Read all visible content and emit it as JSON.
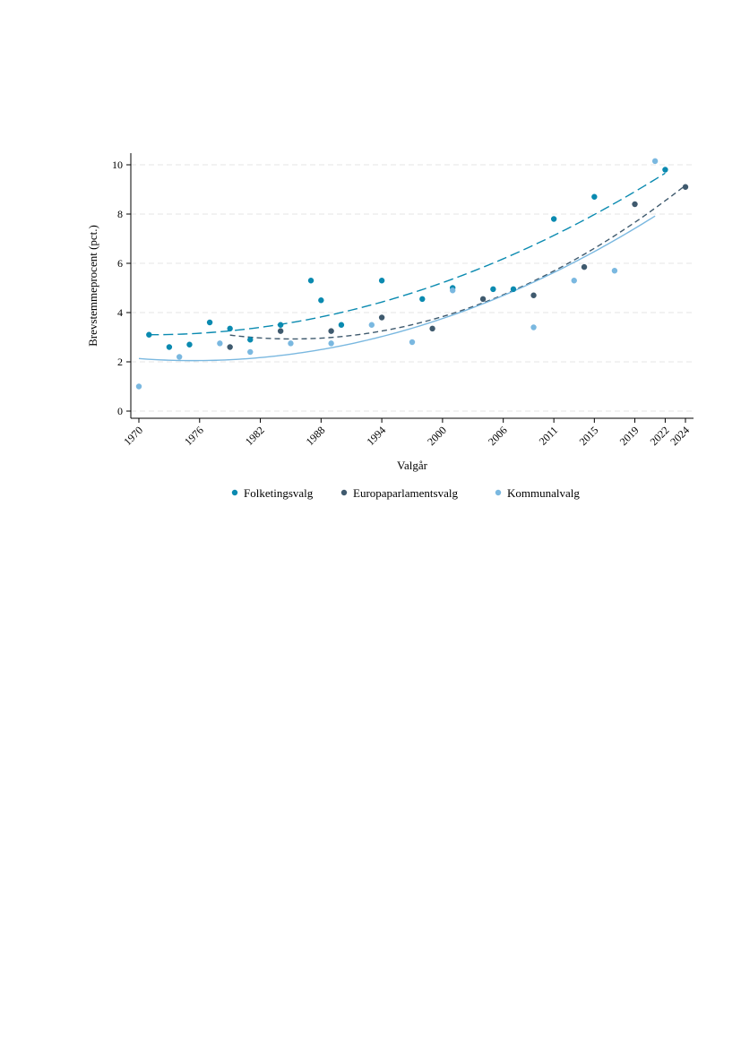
{
  "chart_data": {
    "type": "scatter",
    "title": "",
    "xlabel": "Valgår",
    "ylabel": "Brevstemmeprocent (pct.)",
    "xlim": [
      1970,
      2024
    ],
    "ylim": [
      0,
      10.5
    ],
    "grid": true,
    "legend_position": "bottom",
    "x_tick_labels": [
      "1970",
      "1976",
      "1982",
      "1988",
      "1994",
      "2000",
      "2006",
      "2011",
      "2015",
      "2019",
      "2022",
      "2024"
    ],
    "y_tick_labels": [
      "0",
      "2",
      "4",
      "6",
      "8",
      "10"
    ],
    "series": [
      {
        "name": "Folketingsvalg",
        "color": "#0a8ab0",
        "fit_style": "long-dash",
        "points": [
          [
            1971,
            3.1
          ],
          [
            1973,
            2.6
          ],
          [
            1975,
            2.7
          ],
          [
            1977,
            3.6
          ],
          [
            1979,
            3.35
          ],
          [
            1981,
            2.9
          ],
          [
            1984,
            3.5
          ],
          [
            1987,
            5.3
          ],
          [
            1988,
            4.5
          ],
          [
            1990,
            3.5
          ],
          [
            1994,
            5.3
          ],
          [
            1998,
            4.55
          ],
          [
            2001,
            5.0
          ],
          [
            2005,
            4.95
          ],
          [
            2007,
            4.95
          ],
          [
            2011,
            7.8
          ],
          [
            2015,
            8.7
          ],
          [
            2022,
            9.8
          ]
        ],
        "fit_range": [
          1971,
          2022
        ]
      },
      {
        "name": "Europaparlamentsvalg",
        "color": "#3f5a6e",
        "fit_style": "short-dash",
        "points": [
          [
            1979,
            2.6
          ],
          [
            1984,
            3.25
          ],
          [
            1989,
            3.25
          ],
          [
            1994,
            3.8
          ],
          [
            1999,
            3.35
          ],
          [
            2004,
            4.55
          ],
          [
            2009,
            4.7
          ],
          [
            2014,
            5.85
          ],
          [
            2019,
            8.4
          ],
          [
            2024,
            9.1
          ]
        ],
        "fit_range": [
          1979,
          2024
        ]
      },
      {
        "name": "Kommunalvalg",
        "color": "#7ab8e0",
        "fit_style": "solid",
        "points": [
          [
            1970,
            1.0
          ],
          [
            1974,
            2.2
          ],
          [
            1978,
            2.75
          ],
          [
            1981,
            2.4
          ],
          [
            1985,
            2.75
          ],
          [
            1989,
            2.75
          ],
          [
            1993,
            3.5
          ],
          [
            1997,
            2.8
          ],
          [
            2001,
            4.9
          ],
          [
            2009,
            3.4
          ],
          [
            2013,
            5.3
          ],
          [
            2017,
            5.7
          ],
          [
            2021,
            10.15
          ]
        ],
        "fit_range": [
          1970,
          2021
        ]
      }
    ]
  }
}
